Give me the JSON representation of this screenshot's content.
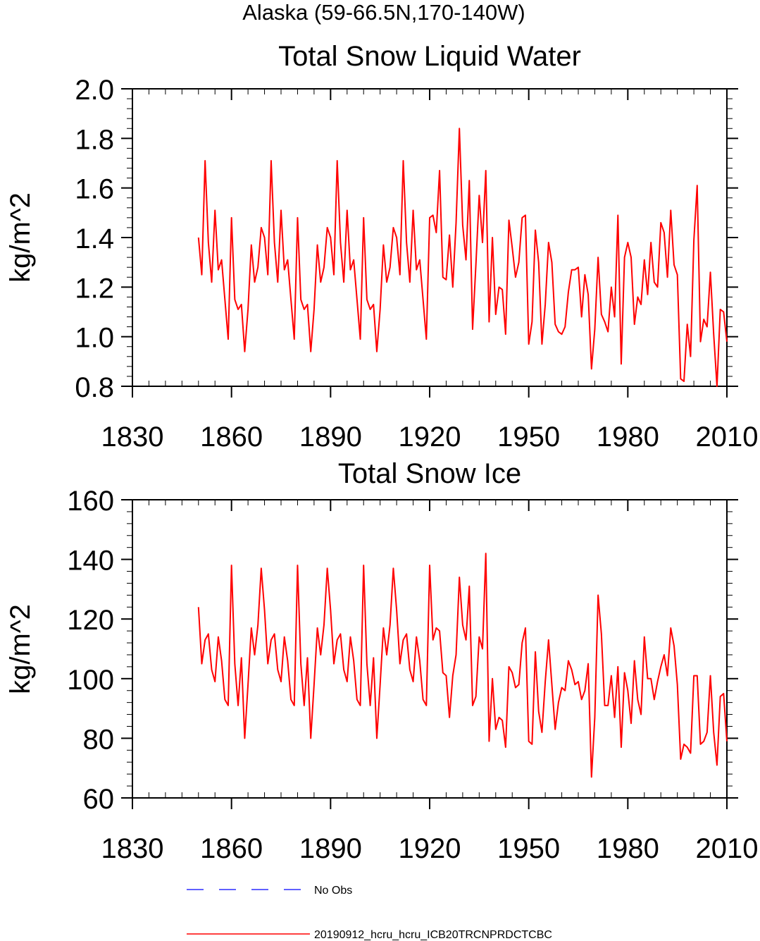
{
  "figure_title": "Alaska (59-66.5N,170-140W)",
  "chart_data": [
    {
      "type": "line",
      "title": "Total Snow Liquid Water",
      "xlabel": "",
      "ylabel": "kg/m^2",
      "xlim": [
        1830,
        2010
      ],
      "ylim": [
        0.8,
        2.0
      ],
      "x_major_ticks": [
        1830,
        1860,
        1890,
        1920,
        1950,
        1980,
        2010
      ],
      "y_major_ticks": [
        0.8,
        1.0,
        1.2,
        1.4,
        1.6,
        1.8,
        2.0
      ],
      "y_minor_step": 0.04,
      "x_start": 1850,
      "series": [
        {
          "name": "20190912_hcru_hcru_ICB20TRCNPRDCTCBC",
          "color": "#ff0000",
          "values": [
            1.4,
            1.25,
            1.71,
            1.38,
            1.22,
            1.51,
            1.27,
            1.31,
            1.15,
            0.99,
            1.48,
            1.15,
            1.11,
            1.13,
            0.94,
            1.11,
            1.37,
            1.22,
            1.28,
            1.44,
            1.4,
            1.25,
            1.71,
            1.38,
            1.22,
            1.51,
            1.27,
            1.31,
            1.15,
            0.99,
            1.48,
            1.15,
            1.11,
            1.13,
            0.94,
            1.11,
            1.37,
            1.22,
            1.28,
            1.44,
            1.4,
            1.25,
            1.71,
            1.38,
            1.22,
            1.51,
            1.27,
            1.31,
            1.15,
            0.99,
            1.48,
            1.15,
            1.11,
            1.13,
            0.94,
            1.11,
            1.37,
            1.22,
            1.28,
            1.44,
            1.4,
            1.25,
            1.71,
            1.38,
            1.22,
            1.51,
            1.27,
            1.31,
            1.15,
            0.99,
            1.48,
            1.49,
            1.42,
            1.67,
            1.24,
            1.23,
            1.41,
            1.2,
            1.46,
            1.84,
            1.45,
            1.31,
            1.63,
            1.03,
            1.29,
            1.57,
            1.38,
            1.67,
            1.06,
            1.4,
            1.09,
            1.2,
            1.19,
            1.01,
            1.47,
            1.36,
            1.24,
            1.3,
            1.48,
            1.49,
            0.97,
            1.06,
            1.43,
            1.3,
            0.97,
            1.13,
            1.38,
            1.3,
            1.05,
            1.02,
            1.01,
            1.04,
            1.18,
            1.27,
            1.27,
            1.28,
            1.08,
            1.25,
            1.17,
            0.87,
            1.03,
            1.32,
            1.09,
            1.06,
            1.02,
            1.2,
            1.08,
            1.49,
            0.89,
            1.32,
            1.38,
            1.32,
            1.05,
            1.16,
            1.13,
            1.31,
            1.17,
            1.38,
            1.22,
            1.2,
            1.46,
            1.42,
            1.24,
            1.51,
            1.29,
            1.25,
            0.83,
            0.82,
            1.05,
            0.92,
            1.39,
            1.61,
            0.98,
            1.07,
            1.04,
            1.26,
            1.01,
            0.8,
            1.11,
            1.1,
            0.98
          ]
        }
      ]
    },
    {
      "type": "line",
      "title": "Total Snow Ice",
      "xlabel": "",
      "ylabel": "kg/m^2",
      "xlim": [
        1830,
        2010
      ],
      "ylim": [
        60,
        160
      ],
      "x_major_ticks": [
        1830,
        1860,
        1890,
        1920,
        1950,
        1980,
        2010
      ],
      "y_major_ticks": [
        60,
        80,
        100,
        120,
        140,
        160
      ],
      "y_minor_step": 4,
      "x_start": 1850,
      "series": [
        {
          "name": "20190912_hcru_hcru_ICB20TRCNPRDCTCBC",
          "color": "#ff0000",
          "values": [
            124,
            105,
            113,
            115,
            103,
            99,
            114,
            106,
            93,
            91,
            138,
            105,
            91,
            107,
            80,
            98,
            117,
            108,
            118,
            137,
            123,
            105,
            113,
            115,
            103,
            99,
            114,
            106,
            93,
            91,
            138,
            105,
            91,
            107,
            80,
            98,
            117,
            108,
            118,
            137,
            123,
            105,
            113,
            115,
            103,
            99,
            114,
            106,
            93,
            91,
            138,
            105,
            91,
            107,
            80,
            98,
            117,
            108,
            118,
            137,
            123,
            105,
            113,
            115,
            103,
            99,
            114,
            106,
            93,
            91,
            138,
            113,
            117,
            116,
            102,
            101,
            87,
            101,
            108,
            134,
            118,
            113,
            131,
            91,
            94,
            114,
            110,
            142,
            79,
            100,
            83,
            87,
            86,
            77,
            104,
            102,
            97,
            98,
            112,
            117,
            79,
            78,
            109,
            89,
            82,
            99,
            113,
            98,
            83,
            92,
            97,
            96,
            106,
            103,
            98,
            99,
            93,
            96,
            105,
            67,
            87,
            128,
            115,
            91,
            91,
            101,
            87,
            104,
            77,
            102,
            96,
            85,
            106,
            93,
            88,
            114,
            100,
            100,
            93,
            99,
            104,
            108,
            101,
            117,
            111,
            98,
            73,
            78,
            77,
            75,
            101,
            101,
            78,
            79,
            82,
            101,
            82,
            71,
            94,
            95,
            79
          ]
        }
      ]
    }
  ],
  "legend": [
    {
      "label": "No Obs",
      "color": "#0000ff",
      "style": "dashed"
    },
    {
      "label": "20190912_hcru_hcru_ICB20TRCNPRDCTCBC",
      "color": "#ff0000",
      "style": "solid"
    }
  ]
}
